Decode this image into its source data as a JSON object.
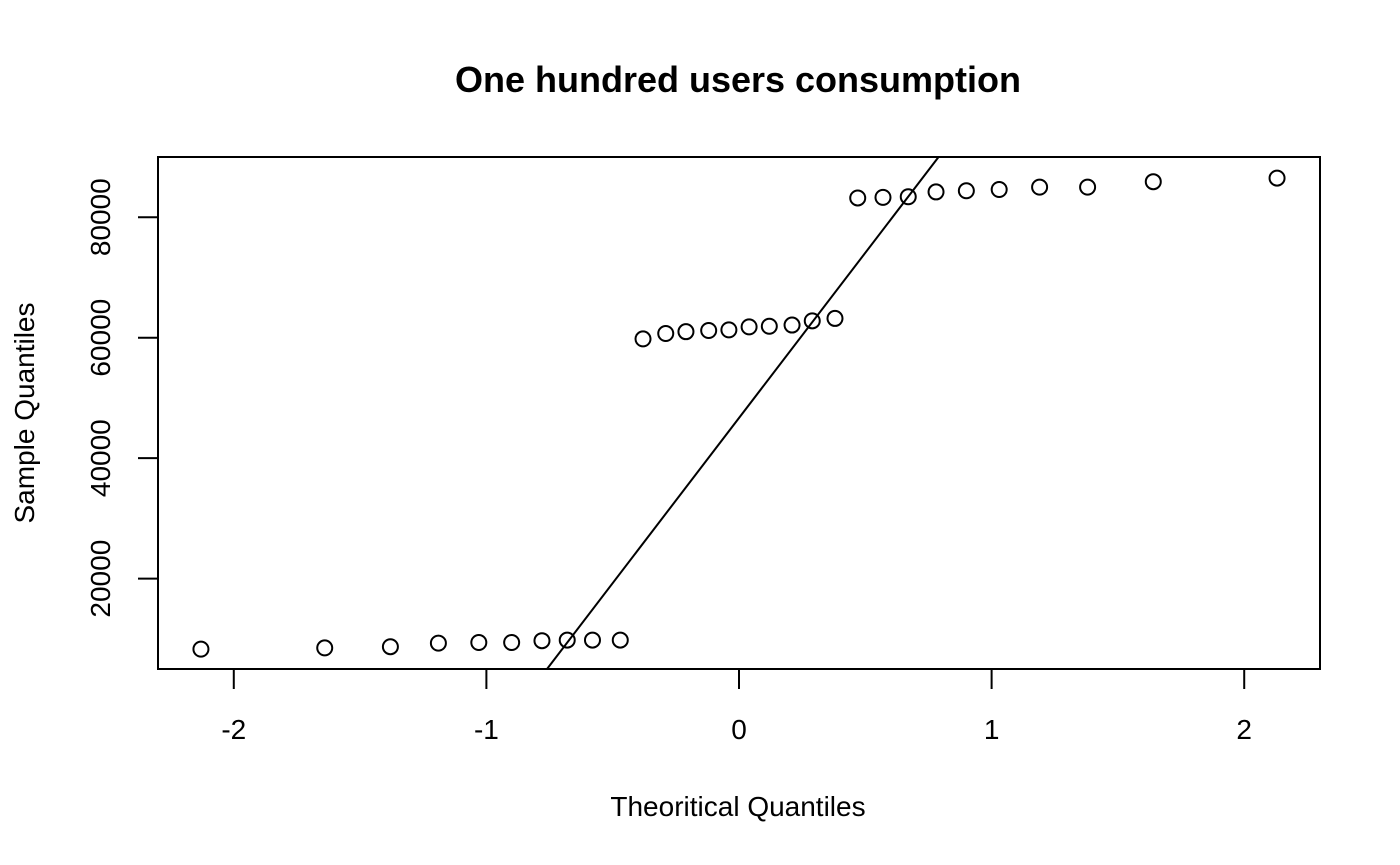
{
  "chart_data": {
    "type": "scatter",
    "title": "One hundred users consumption",
    "xlabel": "Theoritical Quantiles",
    "ylabel": "Sample Quantiles",
    "xlim": [
      -2.3,
      2.3
    ],
    "ylim": [
      5000,
      90000
    ],
    "x_ticks": [
      -2,
      -1,
      0,
      1,
      2
    ],
    "x_tick_labels": [
      "-2",
      "-1",
      "0",
      "1",
      "2"
    ],
    "y_ticks": [
      20000,
      40000,
      60000,
      80000
    ],
    "y_tick_labels": [
      "20000",
      "40000",
      "60000",
      "80000"
    ],
    "grid": false,
    "points": [
      {
        "x": -2.13,
        "y": 8300
      },
      {
        "x": -1.64,
        "y": 8500
      },
      {
        "x": -1.38,
        "y": 8700
      },
      {
        "x": -1.19,
        "y": 9300
      },
      {
        "x": -1.03,
        "y": 9400
      },
      {
        "x": -0.9,
        "y": 9400
      },
      {
        "x": -0.78,
        "y": 9700
      },
      {
        "x": -0.68,
        "y": 9800
      },
      {
        "x": -0.58,
        "y": 9800
      },
      {
        "x": -0.47,
        "y": 9800
      },
      {
        "x": -0.38,
        "y": 59800
      },
      {
        "x": -0.29,
        "y": 60700
      },
      {
        "x": -0.21,
        "y": 61000
      },
      {
        "x": -0.12,
        "y": 61200
      },
      {
        "x": -0.04,
        "y": 61300
      },
      {
        "x": 0.04,
        "y": 61800
      },
      {
        "x": 0.12,
        "y": 61900
      },
      {
        "x": 0.21,
        "y": 62100
      },
      {
        "x": 0.29,
        "y": 62800
      },
      {
        "x": 0.38,
        "y": 63200
      },
      {
        "x": 0.47,
        "y": 83200
      },
      {
        "x": 0.57,
        "y": 83300
      },
      {
        "x": 0.67,
        "y": 83400
      },
      {
        "x": 0.78,
        "y": 84200
      },
      {
        "x": 0.9,
        "y": 84400
      },
      {
        "x": 1.03,
        "y": 84600
      },
      {
        "x": 1.19,
        "y": 85000
      },
      {
        "x": 1.38,
        "y": 85000
      },
      {
        "x": 1.64,
        "y": 85900
      },
      {
        "x": 2.13,
        "y": 86500
      }
    ],
    "reference_line": {
      "x1": -0.76,
      "y1": 5000,
      "x2": 0.79,
      "y2": 90000
    }
  }
}
